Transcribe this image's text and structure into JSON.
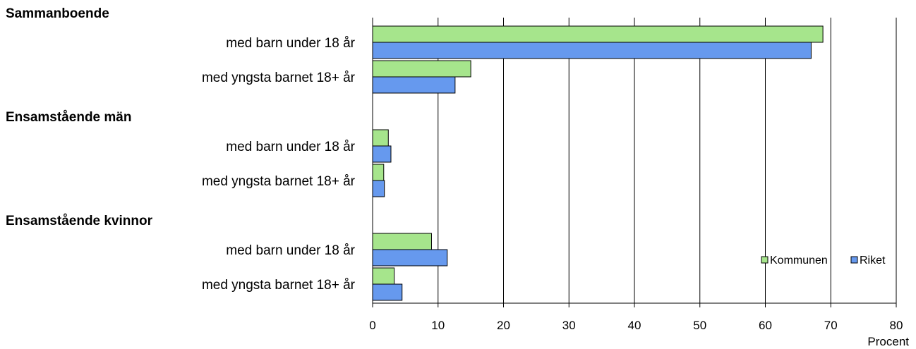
{
  "chart_data": {
    "type": "bar",
    "orientation": "horizontal",
    "groups": [
      {
        "label": "Sammanboende",
        "categories": [
          "med barn under 18 år",
          "med yngsta barnet 18+ år"
        ]
      },
      {
        "label": "Ensamstående män",
        "categories": [
          "med barn under 18 år",
          "med yngsta barnet 18+ år"
        ]
      },
      {
        "label": "Ensamstående kvinnor",
        "categories": [
          "med barn under 18 år",
          "med yngsta barnet 18+ år"
        ]
      }
    ],
    "series": [
      {
        "name": "Kommunen",
        "color": "#a6e58c",
        "values": [
          68.8,
          15.0,
          2.4,
          1.7,
          9.0,
          3.3
        ]
      },
      {
        "name": "Riket",
        "color": "#6699ee",
        "values": [
          67.0,
          12.6,
          2.8,
          1.8,
          11.4,
          4.5
        ]
      }
    ],
    "xlabel": "Procent",
    "xlim": [
      0,
      80
    ],
    "xticks": [
      0,
      10,
      20,
      30,
      40,
      50,
      60,
      70,
      80
    ],
    "grid": true,
    "legend": "bottom-right inside"
  }
}
